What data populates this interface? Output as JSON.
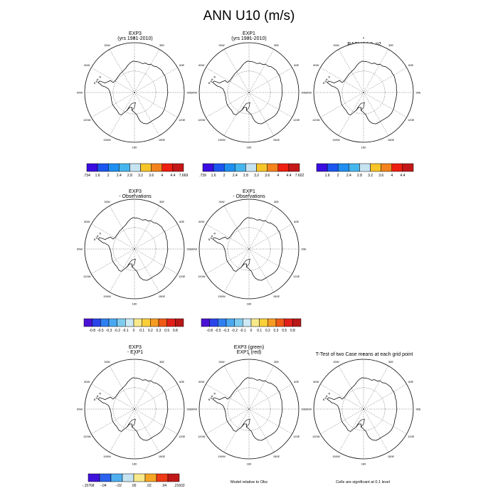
{
  "figure": {
    "title": "ANN U10 (m/s)"
  },
  "panels": [
    {
      "id": "exp3",
      "title_lines": [
        "EXP3",
        "(yrs 1981-2010)"
      ],
      "colorbar": "abs_exp3"
    },
    {
      "id": "exp1",
      "title_lines": [
        "EXP1",
        "(yrs 1981-2010)"
      ],
      "colorbar": "abs_exp1"
    },
    {
      "id": "racmo",
      "title_lines": [
        "RACMO2.3_p2"
      ],
      "colorbar": "abs_racmo"
    },
    {
      "id": "exp3-obs",
      "title_lines": [
        "EXP3",
        "- Observations"
      ],
      "colorbar": "diff_obs_1"
    },
    {
      "id": "exp1-obs",
      "title_lines": [
        "EXP1",
        "- Observations"
      ],
      "colorbar": "diff_obs_2"
    },
    {
      "id": "exp3-exp1",
      "title_lines": [
        "EXP3",
        "- EXP1"
      ],
      "colorbar": "diff_exp"
    },
    {
      "id": "exp3-green-exp1-red",
      "title_lines": [
        "EXP3 (green)",
        "EXP1 (red)"
      ],
      "colorbar": null
    },
    {
      "id": "ttest",
      "title_lines": [
        "T-Test of two Case means at each grid point"
      ],
      "colorbar": null
    }
  ],
  "map_labels": {
    "lon": [
      "0",
      "30E",
      "60E",
      "90E",
      "120E",
      "150E",
      "180",
      "150W",
      "120W",
      "90W",
      "60W",
      "30W"
    ]
  },
  "notes": {
    "model_relative": "Model relative to Obs",
    "significance": "Cells are significant at 0.1 level"
  },
  "colorbars": {
    "abs_exp3": {
      "labels": [
        ".734",
        "1.6",
        "2",
        "2.4",
        "2.8",
        "3.2",
        "3.6",
        "4",
        "4.4",
        "7.669"
      ]
    },
    "abs_exp1": {
      "labels": [
        ".739",
        "1.6",
        "2",
        "2.4",
        "2.8",
        "3.2",
        "3.6",
        "4",
        "4.4",
        "7.602"
      ]
    },
    "abs_racmo": {
      "labels": [
        "1.6",
        "2",
        "2.4",
        "2.8",
        "3.2",
        "3.6",
        "4",
        "4.4"
      ]
    },
    "diff_obs_1": {
      "labels": [
        "-0.8",
        "-0.5",
        "-0.3",
        "-0.2",
        "-0.1",
        "0",
        "0.1",
        "0.2",
        "0.3",
        "0.5",
        "0.8"
      ]
    },
    "diff_obs_2": {
      "labels": [
        "-0.8",
        "-0.5",
        "-0.3",
        "-0.2",
        "-0.1",
        "0",
        "0.1",
        "0.2",
        "0.3",
        "0.5",
        "0.8"
      ]
    },
    "diff_exp": {
      "labels": [
        "-.15768",
        "-.04",
        "-.02",
        ".00",
        ".02",
        ".04",
        ".21602"
      ]
    }
  },
  "colors": {
    "abs9": [
      "#3b0de0",
      "#1c56f0",
      "#1e8ff0",
      "#45b5ee",
      "#c6e3f2",
      "#f7c52a",
      "#f4831e",
      "#ee1e10",
      "#c41818"
    ],
    "div12": [
      "#4a12d4",
      "#2a44ea",
      "#2f7ff0",
      "#4aa8f0",
      "#7fcbf0",
      "#cde9f6",
      "#f7e88a",
      "#fbcf3a",
      "#f79c22",
      "#ef5a16",
      "#e2201a",
      "#b81818"
    ],
    "div8": [
      "#3f12dc",
      "#2a62ee",
      "#4fb0f0",
      "#c6e3f2",
      "#f7e88a",
      "#f7a524",
      "#ee3a16",
      "#c01818"
    ]
  },
  "chart_data": {
    "type": "polar-map-panels",
    "title": "ANN U10 (m/s)",
    "projection": "south polar stereographic",
    "variable": "U10",
    "units": "m/s",
    "panels": [
      "EXP3",
      "EXP1",
      "RACMO2.3_p2",
      "EXP3 - Observations",
      "EXP1 - Observations",
      "EXP3 - EXP1",
      "EXP3 (green) EXP1 (red)",
      "T-Test of two Case means at each grid point"
    ],
    "colorbar_ranges": {
      "EXP3": [
        0.734,
        7.669
      ],
      "EXP1": [
        0.739,
        7.602
      ],
      "EXP3 - EXP1": [
        -0.15768,
        0.21602
      ]
    },
    "colorbar_intervals_abs": [
      1.6,
      2,
      2.4,
      2.8,
      3.2,
      3.6,
      4,
      4.4
    ],
    "colorbar_intervals_diff_obs": [
      -0.8,
      -0.5,
      -0.3,
      -0.2,
      -0.1,
      0,
      0.1,
      0.2,
      0.3,
      0.5,
      0.8
    ]
  }
}
